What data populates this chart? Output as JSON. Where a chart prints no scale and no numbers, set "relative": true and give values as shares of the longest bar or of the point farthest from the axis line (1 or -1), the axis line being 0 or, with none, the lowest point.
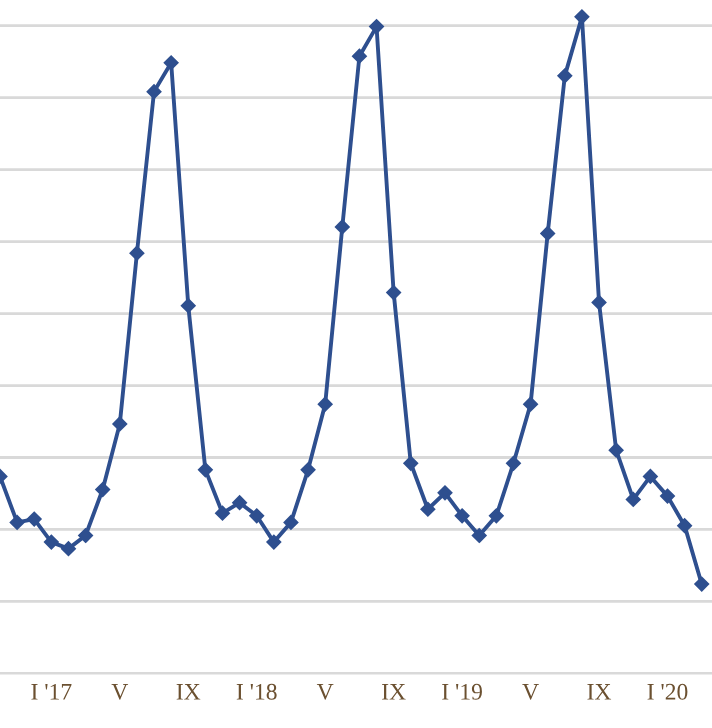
{
  "chart_data": {
    "type": "line",
    "relative": true,
    "grid": "y",
    "marker": "diamond",
    "line_style": "solid",
    "categories": [
      null,
      null,
      null,
      "I '17",
      null,
      null,
      null,
      "V",
      null,
      null,
      null,
      "IX",
      null,
      null,
      null,
      "I '18",
      null,
      null,
      null,
      "V",
      null,
      null,
      null,
      "IX",
      null,
      null,
      null,
      "I '19",
      null,
      null,
      null,
      "V",
      null,
      null,
      null,
      "IX",
      null,
      null,
      null,
      "I '20",
      null,
      null
    ],
    "series": [
      {
        "color": "#2e4f8f",
        "values": [
          0.3,
          0.23,
          0.235,
          0.2,
          0.19,
          0.21,
          0.28,
          0.38,
          0.64,
          0.886,
          0.93,
          0.56,
          0.31,
          0.244,
          0.26,
          0.24,
          0.2,
          0.23,
          0.31,
          0.41,
          0.68,
          0.94,
          0.985,
          0.58,
          0.32,
          0.25,
          0.275,
          0.24,
          0.21,
          0.24,
          0.32,
          0.41,
          0.67,
          0.91,
          1,
          0.565,
          0.34,
          0.265,
          0.3,
          0.27,
          0.225,
          0.136
        ]
      }
    ]
  }
}
